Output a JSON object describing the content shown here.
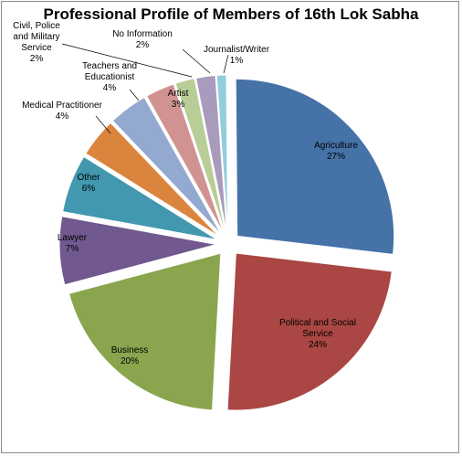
{
  "chart_data": {
    "type": "pie",
    "title": "Professional Profile of Members of 16th Lok Sabha",
    "legend": "none",
    "slices": [
      {
        "name": "Agriculture",
        "value": 27,
        "pct_label": "27%",
        "color": "#4572a7"
      },
      {
        "name": "Political and Social Service",
        "value": 24,
        "pct_label": "24%",
        "color": "#aa4643"
      },
      {
        "name": "Business",
        "value": 20,
        "pct_label": "20%",
        "color": "#89a54e"
      },
      {
        "name": "Lawyer",
        "value": 7,
        "pct_label": "7%",
        "color": "#71588f"
      },
      {
        "name": "Other",
        "value": 6,
        "pct_label": "6%",
        "color": "#4198af"
      },
      {
        "name": "Medical Practitioner",
        "value": 4,
        "pct_label": "4%",
        "color": "#db843d"
      },
      {
        "name": "Teachers and Educationist",
        "value": 4,
        "pct_label": "4%",
        "color": "#93a9cf"
      },
      {
        "name": "Artist",
        "value": 3,
        "pct_label": "3%",
        "color": "#d19392"
      },
      {
        "name": "Civil, Police and Military Service",
        "value": 2,
        "pct_label": "2%",
        "color": "#b9cd96"
      },
      {
        "name": "No Information",
        "value": 2,
        "pct_label": "2%",
        "color": "#a99bbd"
      },
      {
        "name": "Journalist/Writer",
        "value": 1,
        "pct_label": "1%",
        "color": "#92cddc"
      }
    ]
  }
}
